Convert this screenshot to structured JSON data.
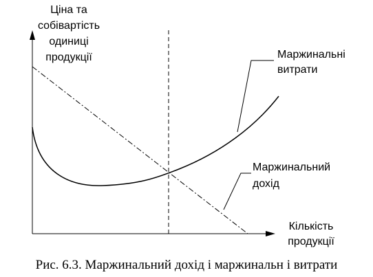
{
  "axes": {
    "y_label": [
      "Ціна та",
      "собівартість",
      "одиниці",
      "продукції"
    ],
    "x_label": [
      "Кількість",
      "продукції"
    ]
  },
  "curves": {
    "marginal_cost": [
      "Маржинальні",
      "витрати"
    ],
    "marginal_revenue": [
      "Маржинальний",
      "дохід"
    ]
  },
  "caption": "Рис. 6.3. Маржинальний дохід і маржинальн і витрати"
}
